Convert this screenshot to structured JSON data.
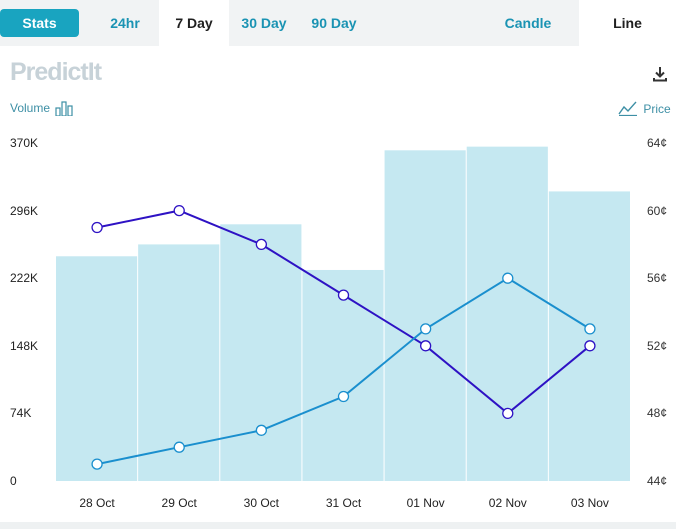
{
  "tabs": {
    "stats": "Stats",
    "ranges": [
      "24hr",
      "7 Day",
      "30 Day",
      "90 Day"
    ],
    "active_range": "7 Day",
    "chart_types": [
      "Candle",
      "Line"
    ],
    "active_type": "Line"
  },
  "brand": {
    "logo_text": "PredictIt"
  },
  "legend": {
    "volume": "Volume",
    "price": "Price"
  },
  "icons": {
    "download": "download-icon",
    "volume": "bar-chart-icon",
    "price": "line-chart-icon"
  },
  "colors": {
    "bars": "#c5e8f1",
    "series_dark": "#2e12c4",
    "series_light": "#1a8fce",
    "accent": "#19a4c0"
  },
  "chart_data": {
    "type": "bar+line",
    "categories": [
      "28 Oct",
      "29 Oct",
      "30 Oct",
      "31 Oct",
      "01 Nov",
      "02 Nov",
      "03 Nov"
    ],
    "left_axis": {
      "label": "Volume",
      "ticks": [
        "0",
        "74K",
        "148K",
        "222K",
        "296K",
        "370K"
      ],
      "ylim": [
        0,
        370000
      ]
    },
    "right_axis": {
      "label": "Price",
      "ticks": [
        "44¢",
        "48¢",
        "52¢",
        "56¢",
        "60¢",
        "64¢"
      ],
      "ylim": [
        44,
        64
      ]
    },
    "volume": [
      246000,
      259000,
      281000,
      231000,
      362000,
      366000,
      317000
    ],
    "series": [
      {
        "color": "#2e12c4",
        "values": [
          59,
          60,
          58,
          55,
          52,
          48,
          52
        ]
      },
      {
        "color": "#1a8fce",
        "values": [
          45,
          46,
          47,
          49,
          53,
          56,
          53
        ]
      }
    ]
  }
}
